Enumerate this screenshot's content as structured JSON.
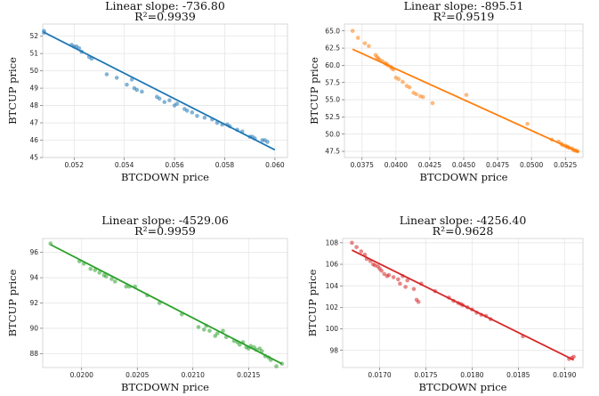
{
  "chart_data": [
    {
      "type": "scatter",
      "title": "Linear slope: -736.80",
      "subtitle": "R²=0.9939",
      "xlabel": "BTCDOWN price",
      "ylabel": "BTCUP price",
      "xlim": [
        0.05075,
        0.0605
      ],
      "ylim": [
        45.0,
        52.7
      ],
      "xticks": [
        0.052,
        0.054,
        0.056,
        0.058,
        0.06
      ],
      "xtick_labels": [
        "0.052",
        "0.054",
        "0.056",
        "0.058",
        "0.060"
      ],
      "yticks": [
        45,
        46,
        47,
        48,
        49,
        50,
        51,
        52
      ],
      "ytick_labels": [
        "45",
        "46",
        "47",
        "48",
        "49",
        "50",
        "51",
        "52"
      ],
      "grid": true,
      "color": "#1f77b4",
      "fit": {
        "slope": -736.8,
        "intercept": 89.65,
        "x_range": [
          0.0508,
          0.06
        ]
      },
      "x": [
        0.0508,
        0.0508,
        0.0519,
        0.052,
        0.0521,
        0.0522,
        0.0523,
        0.0526,
        0.0527,
        0.0533,
        0.0537,
        0.0541,
        0.0543,
        0.0544,
        0.0545,
        0.0547,
        0.0553,
        0.0554,
        0.0556,
        0.0558,
        0.056,
        0.0561,
        0.0564,
        0.0565,
        0.0567,
        0.0569,
        0.0572,
        0.0575,
        0.0577,
        0.0579,
        0.0581,
        0.0582,
        0.0585,
        0.0587,
        0.059,
        0.0591,
        0.0592,
        0.0595,
        0.0596,
        0.0597
      ],
      "y": [
        52.3,
        52.2,
        51.5,
        51.4,
        51.4,
        51.3,
        51.1,
        50.8,
        50.7,
        49.8,
        49.6,
        49.2,
        49.5,
        49.0,
        48.9,
        48.8,
        48.5,
        48.4,
        48.2,
        48.3,
        48.0,
        48.1,
        47.8,
        47.7,
        47.6,
        47.4,
        47.3,
        47.2,
        47.0,
        46.9,
        46.9,
        46.8,
        46.6,
        46.5,
        46.2,
        46.2,
        46.1,
        46.0,
        46.0,
        45.9
      ]
    },
    {
      "type": "scatter",
      "title": "Linear slope: -895.51",
      "subtitle": "R²=0.9519",
      "xlabel": "BTCDOWN price",
      "ylabel": "BTCUP price",
      "xlim": [
        0.0362,
        0.0538
      ],
      "ylim": [
        46.6,
        66.0
      ],
      "xticks": [
        0.0375,
        0.04,
        0.0425,
        0.045,
        0.0475,
        0.05,
        0.0525
      ],
      "xtick_labels": [
        "0.0375",
        "0.0400",
        "0.0425",
        "0.0450",
        "0.0475",
        "0.0500",
        "0.0525"
      ],
      "yticks": [
        47.5,
        50.0,
        52.5,
        55.0,
        57.5,
        60.0,
        62.5,
        65.0
      ],
      "ytick_labels": [
        "47.5",
        "50.0",
        "52.5",
        "55.0",
        "57.5",
        "60.0",
        "62.5",
        "65.0"
      ],
      "grid": true,
      "color": "#ff7f0e",
      "fit": {
        "slope": -895.51,
        "intercept": 95.3,
        "x_range": [
          0.0368,
          0.0535
        ]
      },
      "x": [
        0.0368,
        0.0372,
        0.0377,
        0.038,
        0.0385,
        0.0386,
        0.0387,
        0.0388,
        0.039,
        0.0392,
        0.0393,
        0.0394,
        0.0396,
        0.0397,
        0.0398,
        0.04,
        0.0402,
        0.0405,
        0.0408,
        0.041,
        0.0413,
        0.0415,
        0.0418,
        0.042,
        0.0427,
        0.0452,
        0.0497,
        0.0515,
        0.052,
        0.0522,
        0.0523,
        0.0525,
        0.0526,
        0.0527,
        0.0528,
        0.053,
        0.0531,
        0.0532,
        0.0533,
        0.0534
      ],
      "y": [
        65.0,
        64.0,
        63.2,
        62.8,
        61.5,
        61.2,
        61.0,
        60.8,
        60.6,
        60.3,
        60.2,
        60.0,
        59.8,
        59.6,
        59.4,
        58.2,
        58.0,
        57.6,
        57.0,
        56.8,
        56.0,
        55.8,
        55.5,
        55.4,
        54.5,
        55.7,
        51.5,
        49.2,
        48.9,
        48.6,
        48.4,
        48.3,
        48.2,
        48.1,
        48.0,
        47.9,
        47.7,
        47.6,
        47.6,
        47.5
      ]
    },
    {
      "type": "scatter",
      "title": "Linear slope: -4529.06",
      "subtitle": "R²=0.9959",
      "xlabel": "BTCDOWN price",
      "ylabel": "BTCUP price",
      "xlim": [
        0.01965,
        0.02185
      ],
      "ylim": [
        86.9,
        97.1
      ],
      "xticks": [
        0.02,
        0.0205,
        0.021,
        0.0215
      ],
      "xtick_labels": [
        "0.0200",
        "0.0205",
        "0.0210",
        "0.0215"
      ],
      "yticks": [
        88,
        90,
        92,
        94,
        96
      ],
      "ytick_labels": [
        "88",
        "90",
        "92",
        "94",
        "96"
      ],
      "grid": true,
      "color": "#2ca02c",
      "fit": {
        "slope": -4529.06,
        "intercept": 185.93,
        "x_range": [
          0.01972,
          0.0218
        ]
      },
      "x": [
        0.01972,
        0.01998,
        0.02002,
        0.02008,
        0.02012,
        0.02016,
        0.0202,
        0.02022,
        0.02027,
        0.0203,
        0.0204,
        0.02043,
        0.02048,
        0.02059,
        0.0207,
        0.0209,
        0.02105,
        0.0211,
        0.02112,
        0.02115,
        0.0212,
        0.02122,
        0.02127,
        0.0213,
        0.02137,
        0.0214,
        0.02142,
        0.02145,
        0.02148,
        0.0215,
        0.02152,
        0.02155,
        0.02157,
        0.0216,
        0.02162,
        0.02165,
        0.02168,
        0.0217,
        0.02175,
        0.0218
      ],
      "y": [
        96.7,
        95.3,
        95.1,
        94.7,
        94.6,
        94.4,
        94.2,
        94.1,
        93.9,
        93.7,
        93.3,
        93.3,
        93.3,
        92.6,
        92.0,
        91.1,
        90.1,
        89.9,
        90.2,
        89.8,
        89.4,
        89.6,
        89.8,
        89.3,
        89.0,
        88.9,
        88.7,
        88.9,
        88.5,
        88.4,
        88.6,
        88.5,
        88.3,
        88.4,
        88.2,
        87.8,
        87.7,
        87.5,
        87.0,
        87.2
      ]
    },
    {
      "type": "scatter",
      "title": "Linear slope: -4256.40",
      "subtitle": "R²=0.9628",
      "xlabel": "BTCDOWN price",
      "ylabel": "BTCUP price",
      "xlim": [
        0.0166,
        0.0192
      ],
      "ylim": [
        96.4,
        108.4
      ],
      "xticks": [
        0.017,
        0.0175,
        0.018,
        0.0185,
        0.019
      ],
      "xtick_labels": [
        "0.0170",
        "0.0175",
        "0.0180",
        "0.0185",
        "0.0190"
      ],
      "yticks": [
        98,
        100,
        102,
        104,
        106,
        108
      ],
      "ytick_labels": [
        "98",
        "100",
        "102",
        "104",
        "106",
        "108"
      ],
      "grid": true,
      "color": "#d62728",
      "fit": {
        "slope": -4256.4,
        "intercept": 178.4,
        "x_range": [
          0.0167,
          0.0191
        ]
      },
      "x": [
        0.0167,
        0.01675,
        0.0168,
        0.01684,
        0.01686,
        0.0169,
        0.01693,
        0.01695,
        0.01698,
        0.017,
        0.01702,
        0.01705,
        0.01708,
        0.0171,
        0.01715,
        0.0172,
        0.01722,
        0.01725,
        0.01728,
        0.0173,
        0.01737,
        0.0174,
        0.01742,
        0.01745,
        0.0176,
        0.01775,
        0.0178,
        0.01785,
        0.01788,
        0.0179,
        0.01795,
        0.018,
        0.01805,
        0.0181,
        0.01815,
        0.0182,
        0.01855,
        0.01905,
        0.01908,
        0.0191
      ],
      "y": [
        108.0,
        107.6,
        107.2,
        106.9,
        106.5,
        106.3,
        106.0,
        105.9,
        105.8,
        105.6,
        105.4,
        105.1,
        104.9,
        105.0,
        104.8,
        104.6,
        104.2,
        104.9,
        103.9,
        104.5,
        103.7,
        102.7,
        102.5,
        104.2,
        103.5,
        102.9,
        102.6,
        102.4,
        102.3,
        102.2,
        102.0,
        101.8,
        101.5,
        101.3,
        101.2,
        100.9,
        99.3,
        97.2,
        97.3,
        97.4
      ]
    }
  ]
}
